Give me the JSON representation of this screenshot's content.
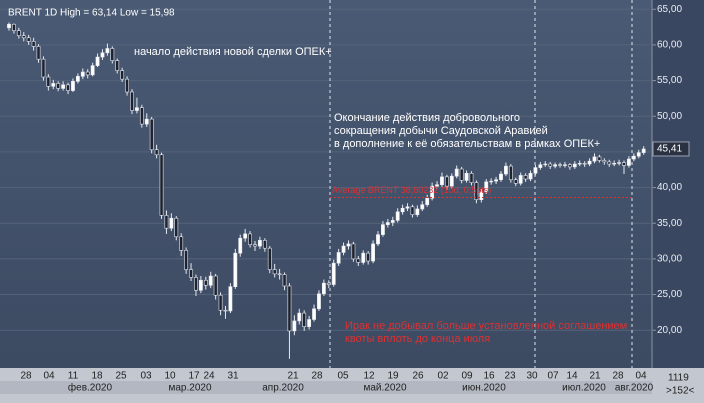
{
  "chart_data": {
    "type": "candlestick",
    "title": "BRENT 1D High = 63,14 Low = 15,98",
    "ylim": [
      14.7,
      66.3
    ],
    "yticks": [
      {
        "value": 20,
        "label": "20,00"
      },
      {
        "value": 25,
        "label": "25,00"
      },
      {
        "value": 30,
        "label": "30,00"
      },
      {
        "value": 35,
        "label": "35,00"
      },
      {
        "value": 40,
        "label": "40,00"
      },
      {
        "value": 45,
        "label": "45,00"
      },
      {
        "value": 50,
        "label": "50,00"
      },
      {
        "value": 55,
        "label": "55,00"
      },
      {
        "value": 60,
        "label": "60,00"
      },
      {
        "value": 65,
        "label": "65,00"
      }
    ],
    "last_price": {
      "value": 45.41,
      "label": "45,41"
    },
    "x_labels": [
      "28",
      "04",
      "11",
      "18",
      "25",
      "03",
      "10",
      "17",
      "24",
      "31",
      "21",
      "28",
      "05",
      "12",
      "19",
      "26",
      "02",
      "09",
      "16",
      "23",
      "30",
      "07",
      "14",
      "21",
      "28",
      "04"
    ],
    "months": [
      "фев.2020",
      "мар.2020",
      "апр.2020",
      "май.2020",
      "июн.2020",
      "июл.2020",
      "авг.2020"
    ],
    "up_color": "#ffffff",
    "down_color": "#1c2230",
    "candles": [
      [
        62.4,
        63.14,
        62.0,
        62.9
      ],
      [
        62.9,
        63.0,
        61.6,
        62.0
      ],
      [
        62.0,
        62.4,
        60.9,
        61.3
      ],
      [
        61.3,
        61.8,
        60.5,
        61.0
      ],
      [
        61.0,
        61.4,
        60.0,
        60.5
      ],
      [
        60.5,
        61.0,
        59.2,
        59.8
      ],
      [
        59.8,
        60.1,
        57.5,
        58.0
      ],
      [
        58.0,
        58.4,
        55.0,
        55.5
      ],
      [
        55.5,
        55.9,
        53.6,
        54.2
      ],
      [
        54.2,
        55.1,
        53.8,
        54.6
      ],
      [
        54.6,
        54.9,
        53.5,
        53.9
      ],
      [
        53.9,
        54.9,
        53.6,
        54.4
      ],
      [
        54.4,
        54.7,
        53.1,
        53.6
      ],
      [
        53.6,
        55.3,
        53.4,
        54.9
      ],
      [
        54.9,
        56.0,
        54.6,
        55.6
      ],
      [
        55.6,
        56.7,
        55.2,
        56.2
      ],
      [
        56.2,
        56.6,
        55.3,
        55.8
      ],
      [
        55.8,
        57.5,
        55.6,
        57.1
      ],
      [
        57.1,
        58.8,
        56.9,
        58.3
      ],
      [
        58.3,
        59.4,
        57.9,
        58.9
      ],
      [
        58.9,
        60.2,
        58.5,
        59.5
      ],
      [
        59.5,
        59.8,
        57.4,
        57.8
      ],
      [
        57.8,
        58.1,
        56.0,
        56.4
      ],
      [
        56.4,
        56.8,
        54.8,
        55.2
      ],
      [
        55.2,
        55.6,
        52.9,
        53.4
      ],
      [
        53.4,
        53.8,
        50.3,
        50.8
      ],
      [
        50.8,
        52.6,
        50.4,
        51.2
      ],
      [
        51.2,
        51.6,
        48.4,
        48.9
      ],
      [
        48.9,
        50.4,
        48.5,
        49.6
      ],
      [
        49.6,
        49.9,
        44.8,
        45.3
      ],
      [
        45.3,
        46.0,
        44.1,
        44.6
      ],
      [
        44.6,
        44.9,
        35.6,
        36.1
      ],
      [
        36.1,
        36.8,
        33.5,
        34.3
      ],
      [
        34.3,
        36.4,
        33.9,
        35.7
      ],
      [
        35.7,
        36.0,
        32.6,
        33.1
      ],
      [
        33.1,
        33.6,
        30.4,
        31.2
      ],
      [
        31.2,
        31.6,
        27.9,
        28.5
      ],
      [
        28.5,
        29.4,
        26.9,
        27.4
      ],
      [
        27.4,
        27.8,
        24.8,
        25.6
      ],
      [
        25.6,
        27.6,
        25.2,
        27.0
      ],
      [
        27.0,
        27.5,
        25.7,
        26.3
      ],
      [
        26.3,
        28.2,
        25.9,
        27.6
      ],
      [
        27.6,
        27.9,
        24.3,
        24.9
      ],
      [
        24.9,
        25.3,
        22.1,
        22.8
      ],
      [
        22.8,
        23.4,
        21.6,
        22.7
      ],
      [
        22.7,
        26.6,
        22.4,
        26.1
      ],
      [
        26.1,
        31.4,
        25.8,
        30.8
      ],
      [
        30.8,
        33.4,
        30.3,
        32.9
      ],
      [
        32.9,
        34.2,
        32.4,
        33.5
      ],
      [
        33.5,
        33.9,
        31.6,
        32.0
      ],
      [
        32.0,
        32.5,
        31.1,
        31.8
      ],
      [
        31.8,
        33.1,
        31.4,
        32.6
      ],
      [
        32.6,
        32.9,
        31.0,
        31.5
      ],
      [
        31.5,
        31.8,
        28.0,
        28.5
      ],
      [
        28.5,
        29.3,
        27.4,
        27.9
      ],
      [
        27.9,
        28.6,
        27.1,
        27.8
      ],
      [
        27.8,
        28.1,
        25.6,
        26.2
      ],
      [
        26.2,
        26.6,
        15.98,
        19.9
      ],
      [
        19.9,
        22.1,
        19.3,
        21.3
      ],
      [
        21.3,
        23.0,
        20.8,
        22.4
      ],
      [
        22.4,
        22.8,
        19.9,
        20.5
      ],
      [
        20.5,
        22.0,
        20.1,
        21.5
      ],
      [
        21.5,
        23.6,
        21.2,
        23.0
      ],
      [
        23.0,
        25.6,
        22.7,
        25.1
      ],
      [
        25.1,
        27.1,
        24.8,
        26.6
      ],
      [
        26.6,
        27.0,
        25.9,
        26.4
      ],
      [
        26.4,
        29.9,
        26.1,
        29.4
      ],
      [
        29.4,
        31.4,
        29.0,
        30.9
      ],
      [
        30.9,
        32.3,
        30.5,
        31.8
      ],
      [
        31.8,
        32.6,
        31.3,
        32.1
      ],
      [
        32.1,
        32.4,
        29.6,
        30.0
      ],
      [
        30.0,
        30.4,
        29.0,
        29.5
      ],
      [
        29.5,
        31.2,
        29.2,
        30.8
      ],
      [
        30.8,
        31.1,
        29.2,
        29.7
      ],
      [
        29.7,
        32.6,
        29.4,
        32.1
      ],
      [
        32.1,
        33.9,
        31.8,
        33.4
      ],
      [
        33.4,
        35.3,
        33.1,
        34.8
      ],
      [
        34.8,
        35.6,
        34.4,
        35.1
      ],
      [
        35.1,
        35.9,
        34.6,
        35.4
      ],
      [
        35.4,
        37.1,
        35.1,
        36.6
      ],
      [
        36.6,
        37.6,
        36.2,
        37.1
      ],
      [
        37.1,
        37.8,
        36.7,
        37.3
      ],
      [
        37.3,
        37.6,
        35.8,
        36.2
      ],
      [
        36.2,
        37.5,
        35.9,
        37.0
      ],
      [
        37.0,
        38.1,
        36.7,
        37.6
      ],
      [
        37.6,
        39.0,
        37.3,
        38.5
      ],
      [
        38.5,
        40.7,
        38.2,
        40.2
      ],
      [
        40.2,
        40.9,
        39.8,
        40.4
      ],
      [
        40.4,
        42.1,
        40.1,
        41.5
      ],
      [
        41.5,
        41.8,
        39.7,
        40.2
      ],
      [
        40.2,
        42.0,
        39.9,
        41.6
      ],
      [
        41.6,
        43.1,
        41.3,
        42.6
      ],
      [
        42.6,
        42.9,
        40.6,
        41.0
      ],
      [
        41.0,
        42.4,
        40.7,
        42.0
      ],
      [
        42.0,
        42.3,
        40.3,
        40.7
      ],
      [
        40.7,
        41.0,
        37.8,
        38.3
      ],
      [
        38.3,
        39.8,
        37.9,
        39.4
      ],
      [
        39.4,
        41.2,
        39.1,
        40.8
      ],
      [
        40.8,
        41.3,
        40.4,
        40.9
      ],
      [
        40.9,
        41.5,
        40.5,
        41.1
      ],
      [
        41.1,
        42.3,
        40.8,
        41.9
      ],
      [
        41.9,
        43.5,
        41.6,
        43.0
      ],
      [
        43.0,
        43.3,
        40.7,
        41.1
      ],
      [
        41.1,
        41.4,
        40.2,
        40.6
      ],
      [
        40.6,
        42.1,
        40.3,
        41.7
      ],
      [
        41.7,
        42.0,
        40.8,
        41.2
      ],
      [
        41.2,
        42.4,
        40.9,
        42.0
      ],
      [
        42.0,
        43.2,
        41.7,
        42.8
      ],
      [
        42.8,
        43.6,
        42.5,
        43.2
      ],
      [
        43.2,
        43.7,
        42.9,
        43.3
      ],
      [
        43.3,
        43.6,
        42.6,
        43.0
      ],
      [
        43.0,
        43.5,
        42.7,
        43.2
      ],
      [
        43.2,
        43.5,
        42.8,
        43.1
      ],
      [
        43.1,
        43.6,
        42.8,
        43.2
      ],
      [
        43.2,
        43.4,
        42.5,
        42.9
      ],
      [
        42.9,
        43.7,
        42.6,
        43.3
      ],
      [
        43.3,
        43.8,
        43.0,
        43.4
      ],
      [
        43.4,
        43.7,
        42.9,
        43.3
      ],
      [
        43.3,
        44.1,
        43.0,
        43.7
      ],
      [
        43.7,
        44.8,
        43.4,
        44.3
      ],
      [
        44.3,
        44.6,
        43.5,
        43.8
      ],
      [
        43.8,
        44.1,
        43.2,
        43.6
      ],
      [
        43.6,
        43.9,
        42.9,
        43.3
      ],
      [
        43.3,
        43.8,
        43.0,
        43.4
      ],
      [
        43.4,
        43.9,
        43.1,
        43.5
      ],
      [
        43.5,
        43.8,
        41.9,
        43.1
      ],
      [
        43.1,
        44.4,
        42.8,
        44.0
      ],
      [
        44.0,
        44.8,
        43.7,
        44.4
      ],
      [
        44.4,
        45.3,
        44.1,
        44.9
      ],
      [
        44.9,
        45.8,
        44.6,
        45.41
      ]
    ],
    "average": {
      "value": 38.60232,
      "label": "Average BRENT 38,60232 (10d, 0.5pts)",
      "color": "#e03030"
    },
    "annotations": {
      "opec_start": "начало действия новой сделки ОПЕК+",
      "saudi_end": [
        "Окончание действия добровольного",
        "сокращения добычи Саудовской Аравией",
        "в дополнение к её обязательствам в рамках ОПЕК+"
      ],
      "iraq": [
        "Ирак не добывал больше установленной соглашением",
        "квоты вплоть до конца июля"
      ]
    },
    "footer": {
      "count": "1119",
      "nav": ">152<"
    }
  }
}
